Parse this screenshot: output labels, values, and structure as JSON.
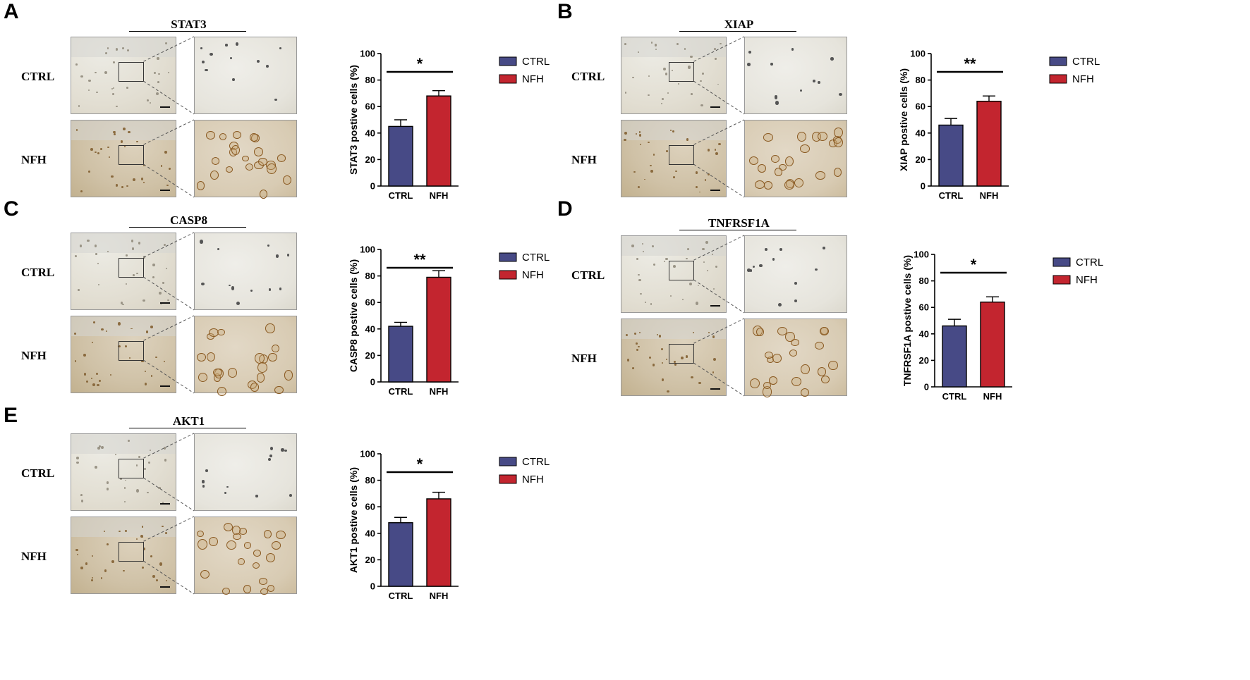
{
  "panels": [
    {
      "label": "A",
      "marker": "STAT3",
      "row_labels": [
        "CTRL",
        "NFH"
      ]
    },
    {
      "label": "B",
      "marker": "XIAP",
      "row_labels": [
        "CTRL",
        "NFH"
      ]
    },
    {
      "label": "C",
      "marker": "CASP8",
      "row_labels": [
        "CTRL",
        "NFH"
      ]
    },
    {
      "label": "D",
      "marker": "TNFRSF1A",
      "row_labels": [
        "CTRL",
        "NFH"
      ]
    },
    {
      "label": "E",
      "marker": "AKT1",
      "row_labels": [
        "CTRL",
        "NFH"
      ]
    }
  ],
  "colors": {
    "ctrl": "#474a86",
    "nfh": "#c3252f"
  },
  "chart_data": [
    {
      "type": "bar",
      "categories": [
        "CTRL",
        "NFH"
      ],
      "values": [
        45,
        68
      ],
      "errors": [
        5,
        4
      ],
      "ylabel": "STAT3 postive cells (%)",
      "ylim": [
        0,
        100
      ],
      "yticks": [
        "0",
        "20",
        "40",
        "60",
        "80",
        "100"
      ],
      "significance": "*",
      "legend": [
        "CTRL",
        "NFH"
      ],
      "legend_position": "right"
    },
    {
      "type": "bar",
      "categories": [
        "CTRL",
        "NFH"
      ],
      "values": [
        46,
        64
      ],
      "errors": [
        5,
        4
      ],
      "ylabel": "XIAP postive cells (%)",
      "ylim": [
        0,
        100
      ],
      "yticks": [
        "0",
        "20",
        "40",
        "60",
        "80",
        "100"
      ],
      "significance": "**",
      "legend": [
        "CTRL",
        "NFH"
      ],
      "legend_position": "right"
    },
    {
      "type": "bar",
      "categories": [
        "CTRL",
        "NFH"
      ],
      "values": [
        42,
        79
      ],
      "errors": [
        3,
        5
      ],
      "ylabel": "CASP8 postive cells (%)",
      "ylim": [
        0,
        100
      ],
      "yticks": [
        "0",
        "20",
        "40",
        "60",
        "80",
        "100"
      ],
      "significance": "**",
      "legend": [
        "CTRL",
        "NFH"
      ],
      "legend_position": "right"
    },
    {
      "type": "bar",
      "categories": [
        "CTRL",
        "NFH"
      ],
      "values": [
        46,
        64
      ],
      "errors": [
        5,
        4
      ],
      "ylabel": "TNFRSF1A postive cells (%)",
      "ylim": [
        0,
        100
      ],
      "yticks": [
        "0",
        "20",
        "40",
        "60",
        "80",
        "100"
      ],
      "significance": "*",
      "legend": [
        "CTRL",
        "NFH"
      ],
      "legend_position": "right"
    },
    {
      "type": "bar",
      "categories": [
        "CTRL",
        "NFH"
      ],
      "values": [
        48,
        66
      ],
      "errors": [
        4,
        5
      ],
      "ylabel": "AKT1 postive cells (%)",
      "ylim": [
        0,
        100
      ],
      "yticks": [
        "0",
        "20",
        "40",
        "60",
        "80",
        "100"
      ],
      "significance": "*",
      "legend": [
        "CTRL",
        "NFH"
      ],
      "legend_position": "right"
    }
  ]
}
